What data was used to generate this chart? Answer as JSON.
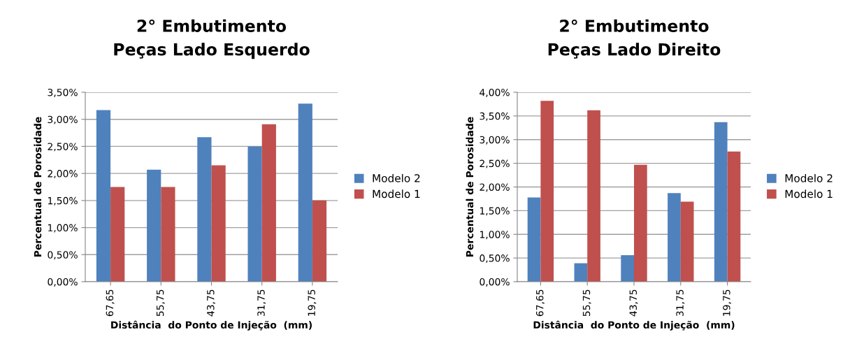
{
  "chart_data": [
    {
      "type": "bar",
      "title": "2° Embutimento\nPeças Lado Esquerdo",
      "xlabel": "Distância  do Ponto de Injeção  (mm)",
      "ylabel": "Percentual de Porosidade",
      "categories": [
        "67,65",
        "55,75",
        "43,75",
        "31,75",
        "19,75"
      ],
      "series": [
        {
          "name": "Modelo 2",
          "color": "#4f81bd",
          "values": [
            3.17,
            2.07,
            2.67,
            2.5,
            3.29
          ]
        },
        {
          "name": "Modelo 1",
          "color": "#c0504d",
          "values": [
            1.75,
            1.75,
            2.15,
            2.91,
            1.5
          ]
        }
      ],
      "ylim": [
        0,
        3.5
      ],
      "yticks": [
        {
          "value": 0,
          "label": "0,00%"
        },
        {
          "value": 0.5,
          "label": "0,50%"
        },
        {
          "value": 1,
          "label": "1,00%"
        },
        {
          "value": 1.5,
          "label": "1,50%"
        },
        {
          "value": 2,
          "label": "2,00%"
        },
        {
          "value": 2.5,
          "label": "2,50%"
        },
        {
          "value": 3,
          "label": "3,00%"
        },
        {
          "value": 3.5,
          "label": "3,50%"
        }
      ],
      "grid": "y",
      "legend": "right"
    },
    {
      "type": "bar",
      "title": "2° Embutimento\nPeças Lado Direito",
      "xlabel": "Distância  do Ponto de Injeção  (mm)",
      "ylabel": "Percentual de Porosidade",
      "categories": [
        "67,65",
        "55,75",
        "43,75",
        "31,75",
        "19,75"
      ],
      "series": [
        {
          "name": "Modelo 2",
          "color": "#4f81bd",
          "values": [
            1.78,
            0.39,
            0.56,
            1.87,
            3.37
          ]
        },
        {
          "name": "Modelo 1",
          "color": "#c0504d",
          "values": [
            3.82,
            3.62,
            2.47,
            1.69,
            2.75
          ]
        }
      ],
      "ylim": [
        0,
        4
      ],
      "yticks": [
        {
          "value": 0,
          "label": "0,00%"
        },
        {
          "value": 0.5,
          "label": "0,50%"
        },
        {
          "value": 1,
          "label": "1,00%"
        },
        {
          "value": 1.5,
          "label": "1,50%"
        },
        {
          "value": 2,
          "label": "2,00%"
        },
        {
          "value": 2.5,
          "label": "2,50%"
        },
        {
          "value": 3,
          "label": "3,00%"
        },
        {
          "value": 3.5,
          "label": "3,50%"
        },
        {
          "value": 4,
          "label": "4,00%"
        }
      ],
      "grid": "y",
      "legend": "right"
    }
  ]
}
